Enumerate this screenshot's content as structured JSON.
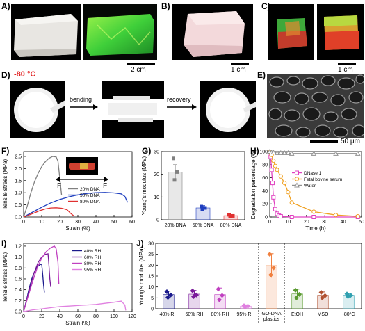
{
  "panels": {
    "A": {
      "label": "A)",
      "scalebar": "2 cm"
    },
    "B": {
      "label": "B)",
      "scalebar": "1 cm"
    },
    "C": {
      "label": "C)",
      "scalebar": "1 cm"
    },
    "D": {
      "label": "D)",
      "temperature": "-80 °C",
      "step1": "bending",
      "step2": "recovery"
    },
    "E": {
      "label": "E)",
      "scalebar": "50 μm"
    },
    "F": {
      "label": "F)",
      "force_left": "F",
      "force_right": "F"
    },
    "G": {
      "label": "G)"
    },
    "H": {
      "label": "H)"
    },
    "I": {
      "label": "I)"
    },
    "J": {
      "label": "J)"
    }
  },
  "colors": {
    "dna20": "#808080",
    "dna50": "#1f3fbf",
    "dna80": "#e03030",
    "dnase": "#e040c0",
    "fbs": "#f0a020",
    "water": "#909090",
    "rh40": "#1a1a8c",
    "rh60": "#7a1a9a",
    "rh80": "#c040c0",
    "rh95": "#e080e0",
    "go": "#f08040",
    "etoh": "#5a9a30",
    "mso": "#b05030",
    "m80": "#30a0b0"
  },
  "chart_data": [
    {
      "panel": "F",
      "type": "line",
      "xlabel": "Strain (%)",
      "ylabel": "Tensile stress (MPa)",
      "xlim": [
        0,
        60
      ],
      "ylim": [
        0,
        2.7
      ],
      "xticks": [
        "0",
        "10",
        "20",
        "30",
        "40",
        "50",
        "60"
      ],
      "yticks": [
        "0.0",
        "0.5",
        "1.0",
        "1.5",
        "2.0",
        "2.5"
      ],
      "series": [
        {
          "name": "20% DNA",
          "color": "#808080",
          "x": [
            0,
            2,
            4,
            6,
            8,
            10,
            12,
            14,
            16,
            18,
            19,
            20,
            21
          ],
          "y": [
            0,
            0.45,
            1.0,
            1.45,
            1.8,
            2.08,
            2.28,
            2.42,
            2.5,
            2.48,
            2.3,
            1.6,
            0.9
          ]
        },
        {
          "name": "50% DNA",
          "color": "#1f3fbf",
          "x": [
            0,
            5,
            10,
            15,
            20,
            25,
            30,
            35,
            40,
            45,
            50,
            54,
            56,
            57.5
          ],
          "y": [
            0,
            0.2,
            0.4,
            0.58,
            0.72,
            0.83,
            0.91,
            0.97,
            1.0,
            1.01,
            0.99,
            0.95,
            0.85,
            0.6
          ]
        },
        {
          "name": "80% DNA",
          "color": "#e03030",
          "x": [
            0,
            3,
            6,
            9,
            12,
            15,
            18,
            21,
            24,
            26,
            28
          ],
          "y": [
            0,
            0.08,
            0.17,
            0.26,
            0.33,
            0.37,
            0.38,
            0.36,
            0.3,
            0.15,
            0.03
          ]
        }
      ]
    },
    {
      "panel": "G",
      "type": "bar",
      "ylabel": "Young's modulus (MPa)",
      "ylim": [
        0,
        30
      ],
      "yticks": [
        "0",
        "10",
        "20",
        "30"
      ],
      "categories": [
        "20% DNA",
        "50% DNA",
        "80% DNA"
      ],
      "values": [
        21.0,
        5.2,
        1.8
      ],
      "errors": [
        3.2,
        1.0,
        0.5
      ],
      "points": [
        [
          27.0,
          21.0,
          17.5
        ],
        [
          5.8,
          5.2,
          4.5
        ],
        [
          2.2,
          1.7,
          1.5
        ]
      ],
      "colors": [
        "#808080",
        "#1f3fbf",
        "#e03030"
      ]
    },
    {
      "panel": "H",
      "type": "line",
      "xlabel": "Time (h)",
      "ylabel": "Degradation percentage (%)",
      "xlim": [
        0,
        50
      ],
      "ylim": [
        0,
        100
      ],
      "xticks": [
        "0",
        "10",
        "20",
        "30",
        "40",
        "50"
      ],
      "yticks": [
        "0",
        "20",
        "40",
        "60",
        "80",
        "100"
      ],
      "series": [
        {
          "name": "DNase 1",
          "color": "#e040c0",
          "x": [
            0,
            0.5,
            1,
            1.5,
            2,
            3,
            4,
            5,
            6,
            12,
            24,
            48
          ],
          "y": [
            100,
            92,
            72,
            52,
            30,
            12,
            5,
            2,
            1,
            0,
            0,
            0
          ]
        },
        {
          "name": "Fetal bovine serum",
          "color": "#f0a020",
          "x": [
            0,
            1,
            2,
            3,
            4,
            6,
            8,
            10,
            12,
            24,
            36,
            48
          ],
          "y": [
            100,
            95,
            86,
            78,
            72,
            62,
            52,
            38,
            22,
            8,
            3,
            1
          ]
        },
        {
          "name": "Water",
          "color": "#909090",
          "x": [
            0,
            1,
            2,
            4,
            6,
            8,
            10,
            12,
            24,
            36,
            48
          ],
          "y": [
            100,
            99,
            99,
            98,
            98,
            98,
            98,
            97,
            97,
            97,
            97
          ]
        }
      ]
    },
    {
      "panel": "I",
      "type": "line",
      "xlabel": "Strain (%)",
      "ylabel": "Tensile stress (MPa)",
      "xlim": [
        0,
        120
      ],
      "ylim": [
        0,
        1.25
      ],
      "xticks": [
        "0",
        "20",
        "40",
        "60",
        "80",
        "100",
        "120"
      ],
      "yticks": [
        "0.0",
        "0.2",
        "0.4",
        "0.6",
        "0.8",
        "1.0",
        "1.2"
      ],
      "series": [
        {
          "name": "40% RH",
          "color": "#1a1a8c",
          "x": [
            0,
            3,
            6,
            9,
            12,
            15,
            18,
            20,
            21,
            22,
            23
          ],
          "y": [
            0,
            0.2,
            0.42,
            0.6,
            0.73,
            0.82,
            0.86,
            0.87,
            0.7,
            0.5,
            0.35
          ]
        },
        {
          "name": "60% RH",
          "color": "#7a1a9a",
          "x": [
            0,
            4,
            8,
            12,
            16,
            20,
            24,
            27,
            28,
            29,
            30
          ],
          "y": [
            0,
            0.25,
            0.5,
            0.73,
            0.9,
            1.0,
            1.05,
            1.06,
            0.85,
            0.6,
            0.45
          ]
        },
        {
          "name": "80% RH",
          "color": "#c040c0",
          "x": [
            0,
            5,
            10,
            15,
            20,
            25,
            30,
            34,
            36,
            38,
            39
          ],
          "y": [
            0,
            0.28,
            0.55,
            0.8,
            0.98,
            1.1,
            1.17,
            1.2,
            1.15,
            0.9,
            0.5
          ]
        },
        {
          "name": "95% RH",
          "color": "#e080e0",
          "x": [
            0,
            10,
            20,
            30,
            40,
            50,
            60,
            70,
            80,
            90,
            100,
            108,
            112,
            113
          ],
          "y": [
            0,
            0.03,
            0.05,
            0.07,
            0.09,
            0.1,
            0.11,
            0.12,
            0.13,
            0.15,
            0.17,
            0.19,
            0.12,
            0.02
          ]
        }
      ]
    },
    {
      "panel": "J",
      "type": "bar",
      "ylabel": "Young's modulus (MPa)",
      "ylim": [
        0,
        30
      ],
      "yticks": [
        "0",
        "5",
        "10",
        "15",
        "20",
        "25",
        "30"
      ],
      "categories": [
        "40% RH",
        "60% RH",
        "80% RH",
        "95% RH",
        "GO-DNA plastics",
        "EtOH",
        "MSO",
        "-80°C"
      ],
      "values": [
        6.5,
        6.7,
        6.5,
        1.2,
        19.8,
        6.8,
        6.2,
        6.2
      ],
      "errors": [
        1.6,
        1.7,
        3.0,
        0.6,
        5.5,
        2.2,
        1.5,
        0.8
      ],
      "points": [
        [
          7.8,
          6.3,
          5.2
        ],
        [
          8.2,
          6.3,
          5.6
        ],
        [
          9.0,
          6.1,
          4.1
        ],
        [
          1.4,
          1.2,
          0.8
        ],
        [
          25.0,
          18.8,
          15.5
        ],
        [
          8.5,
          6.6,
          5.0
        ],
        [
          7.5,
          6.0,
          5.0
        ],
        [
          6.8,
          6.2,
          5.6
        ]
      ],
      "colors": [
        "#1a1a8c",
        "#7a1a9a",
        "#c040c0",
        "#e080e0",
        "#f08040",
        "#5a9a30",
        "#b05030",
        "#30a0b0"
      ]
    }
  ]
}
